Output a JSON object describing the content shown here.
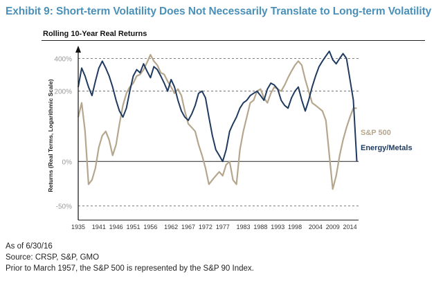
{
  "header": {
    "exhibit_title": "Exhibit 9: Short-term Volatility Does Not Necessarily Translate to Long-term Volatility",
    "chart_title": "Rolling 10-Year Real Returns"
  },
  "footer": {
    "as_of": "As of 6/30/16",
    "source": "Source: CRSP, S&P, GMO",
    "note": "Prior to March 1957, the S&P 500 is represented by the S&P 90 Index."
  },
  "colors": {
    "sp500": "#b5a68d",
    "energy_metals": "#1f3a5f",
    "title": "#4a90b8",
    "label": "#999999"
  },
  "chart_data": {
    "type": "line",
    "title": "Rolling 10-Year Real Returns",
    "ylabel": "Returns (Real Terms, Logarithmic Scale)",
    "yscale": "log(1+r)",
    "ylim": [
      -0.6,
      4.6
    ],
    "yticks": [
      4.0,
      2.0,
      0.0,
      -0.5
    ],
    "yticklabels": [
      "400%",
      "200%",
      "0%",
      "-50%"
    ],
    "xlim": [
      1935,
      2016.5
    ],
    "xticks": [
      1935,
      1941,
      1946,
      1951,
      1956,
      1962,
      1967,
      1972,
      1977,
      1983,
      1988,
      1993,
      1998,
      2004,
      2009,
      2014
    ],
    "grid": "dashed horizontal at 400%, 200% and -50%",
    "series": [
      {
        "name": "S&P 500",
        "color": "#b5a68d",
        "x": [
          1935,
          1936,
          1937,
          1938,
          1939,
          1940,
          1941,
          1942,
          1943,
          1944,
          1945,
          1946,
          1947,
          1948,
          1949,
          1950,
          1951,
          1952,
          1953,
          1954,
          1955,
          1956,
          1957,
          1958,
          1959,
          1960,
          1961,
          1962,
          1963,
          1964,
          1965,
          1966,
          1967,
          1968,
          1969,
          1970,
          1971,
          1972,
          1973,
          1974,
          1975,
          1976,
          1977,
          1978,
          1979,
          1980,
          1981,
          1982,
          1983,
          1984,
          1985,
          1986,
          1987,
          1988,
          1989,
          1990,
          1991,
          1992,
          1993,
          1994,
          1995,
          1996,
          1997,
          1998,
          1999,
          2000,
          2001,
          2002,
          2003,
          2004,
          2005,
          2006,
          2007,
          2008,
          2009,
          2010,
          2011,
          2012,
          2013,
          2014,
          2015,
          2016
        ],
        "y": [
          1.0,
          1.5,
          0.6,
          -0.3,
          -0.25,
          -0.1,
          0.25,
          0.5,
          0.6,
          0.4,
          0.1,
          0.3,
          0.8,
          1.4,
          1.9,
          2.2,
          2.4,
          2.8,
          2.9,
          3.2,
          3.7,
          4.3,
          3.8,
          3.5,
          3.0,
          2.9,
          2.5,
          2.2,
          1.9,
          2.1,
          1.8,
          1.2,
          0.8,
          0.7,
          0.6,
          0.3,
          0.1,
          -0.1,
          -0.3,
          -0.25,
          -0.2,
          -0.15,
          -0.2,
          -0.05,
          0.0,
          -0.25,
          -0.3,
          0.2,
          0.6,
          1.0,
          1.5,
          1.6,
          2.0,
          2.1,
          1.7,
          1.5,
          1.9,
          2.2,
          2.1,
          2.0,
          2.3,
          2.7,
          3.1,
          3.5,
          3.8,
          3.5,
          2.6,
          2.0,
          1.5,
          1.4,
          1.3,
          1.2,
          0.9,
          0.1,
          -0.35,
          -0.2,
          0.1,
          0.4,
          0.7,
          1.0,
          1.3,
          1.3
        ]
      },
      {
        "name": "Energy/Metals",
        "color": "#1f3a5f",
        "x": [
          1935,
          1936,
          1937,
          1938,
          1939,
          1940,
          1941,
          1942,
          1943,
          1944,
          1945,
          1946,
          1947,
          1948,
          1949,
          1950,
          1951,
          1952,
          1953,
          1954,
          1955,
          1956,
          1957,
          1958,
          1959,
          1960,
          1961,
          1962,
          1963,
          1964,
          1965,
          1966,
          1967,
          1968,
          1969,
          1970,
          1971,
          1972,
          1973,
          1974,
          1975,
          1976,
          1977,
          1978,
          1979,
          1980,
          1981,
          1982,
          1983,
          1984,
          1985,
          1986,
          1987,
          1988,
          1989,
          1990,
          1991,
          1992,
          1993,
          1994,
          1995,
          1996,
          1997,
          1998,
          1999,
          2000,
          2001,
          2002,
          2003,
          2004,
          2005,
          2006,
          2007,
          2008,
          2009,
          2010,
          2011,
          2012,
          2013,
          2014,
          2015,
          2016
        ],
        "y": [
          2.2,
          3.3,
          2.8,
          2.2,
          1.8,
          2.5,
          3.3,
          3.8,
          3.3,
          2.8,
          2.2,
          1.6,
          1.2,
          1.0,
          1.3,
          2.0,
          2.8,
          3.2,
          3.0,
          3.6,
          3.1,
          2.7,
          3.4,
          3.2,
          2.8,
          2.4,
          2.0,
          2.6,
          2.2,
          1.6,
          1.2,
          1.0,
          0.9,
          1.1,
          1.4,
          1.9,
          2.0,
          1.7,
          1.0,
          0.5,
          0.2,
          0.1,
          0.0,
          0.2,
          0.6,
          0.8,
          1.0,
          1.3,
          1.5,
          1.6,
          1.8,
          1.9,
          2.0,
          1.8,
          1.6,
          2.1,
          2.4,
          2.3,
          2.1,
          1.6,
          1.4,
          1.3,
          1.7,
          2.0,
          2.2,
          1.6,
          1.2,
          1.6,
          2.2,
          2.8,
          3.4,
          3.8,
          4.2,
          4.6,
          3.9,
          3.6,
          4.0,
          4.4,
          4.0,
          2.6,
          1.6,
          0.0
        ]
      }
    ]
  }
}
